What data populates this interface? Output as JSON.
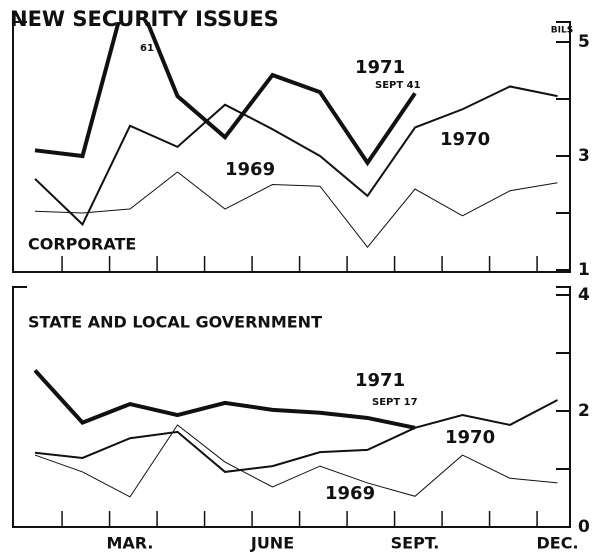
{
  "chart_data": [
    {
      "type": "line",
      "title": "NEW SECURITY ISSUES",
      "y_unit": "BILS",
      "panel_label": "CORPORATE",
      "categories": [
        null,
        null,
        null,
        null,
        null,
        null,
        null,
        null,
        null,
        null,
        null,
        null
      ],
      "ylim": [
        1,
        5
      ],
      "yticks": [
        1,
        3,
        5
      ],
      "minor_yticks": [
        2,
        4
      ],
      "series": [
        {
          "name": "1969",
          "color": "#111111",
          "line_width": 1,
          "values": [
            2.03,
            2.0,
            2.07,
            2.72,
            2.07,
            2.5,
            2.47,
            1.4,
            2.42,
            1.95,
            2.39,
            2.53
          ]
        },
        {
          "name": "1970",
          "color": "#111111",
          "line_width": 2,
          "values": [
            2.6,
            1.8,
            3.53,
            3.16,
            3.9,
            3.47,
            3.0,
            2.3,
            3.5,
            3.82,
            4.22,
            4.05
          ]
        },
        {
          "name": "1971",
          "color": "#111111",
          "line_width": 4,
          "values": [
            3.1,
            3.0,
            6.1,
            4.05,
            3.33,
            4.42,
            4.12,
            2.88,
            4.1,
            null,
            null,
            null
          ]
        }
      ],
      "annotations": [
        "61",
        "SEPT 41"
      ]
    },
    {
      "type": "line",
      "title": "STATE AND LOCAL GOVERNMENT",
      "categories": [
        null,
        null,
        "MAR.",
        null,
        null,
        "JUNE",
        null,
        null,
        "SEPT.",
        null,
        null,
        "DEC."
      ],
      "ylim": [
        0,
        4
      ],
      "yticks": [
        0,
        2,
        4
      ],
      "minor_yticks": [
        1,
        3
      ],
      "series": [
        {
          "name": "1969",
          "color": "#111111",
          "line_width": 1,
          "values": [
            1.24,
            0.95,
            0.52,
            1.76,
            1.12,
            0.69,
            1.05,
            0.76,
            0.53,
            1.24,
            0.84,
            0.76
          ]
        },
        {
          "name": "1970",
          "color": "#111111",
          "line_width": 2,
          "values": [
            1.28,
            1.19,
            1.53,
            1.64,
            0.95,
            1.05,
            1.29,
            1.33,
            1.71,
            1.93,
            1.76,
            2.19
          ]
        },
        {
          "name": "1971",
          "color": "#111111",
          "line_width": 4,
          "values": [
            2.7,
            1.8,
            2.12,
            1.93,
            2.14,
            2.02,
            1.97,
            1.88,
            1.71,
            null,
            null,
            null
          ]
        }
      ],
      "annotations": [
        "SEPT 17"
      ]
    }
  ]
}
